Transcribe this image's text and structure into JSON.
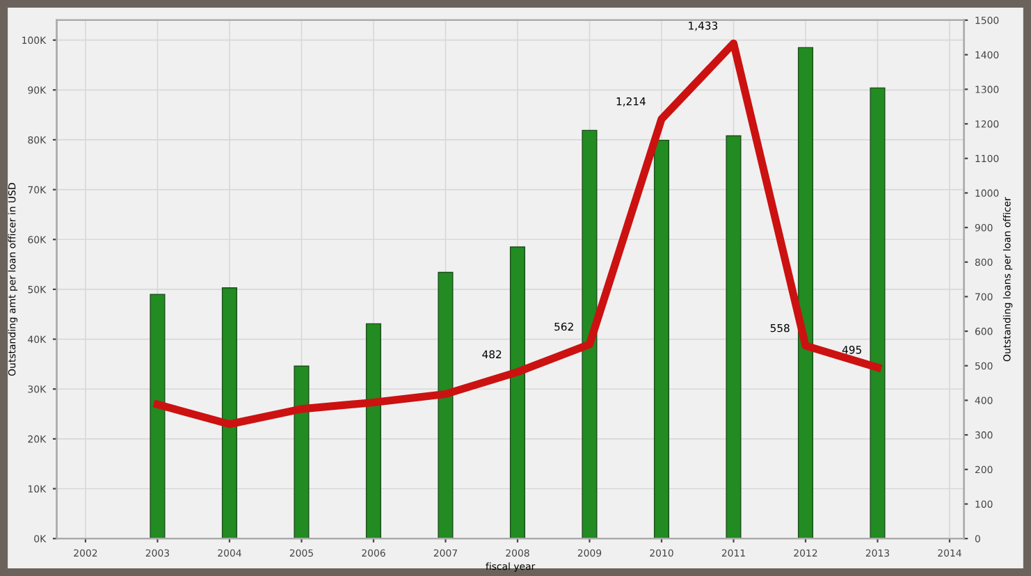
{
  "chart_data": {
    "type": "bar",
    "xlabel": "fiscal year",
    "ylabel": "Outstanding amt per loan officer in USD",
    "y2label": "Outstanding loans per loan officer",
    "x": [
      2003,
      2004,
      2005,
      2006,
      2007,
      2008,
      2009,
      2010,
      2011,
      2012,
      2013
    ],
    "series": [
      {
        "color": "#228b22",
        "values": [
          49000,
          50300,
          34600,
          43100,
          53400,
          58500,
          81900,
          79900,
          80800,
          98500,
          90400
        ]
      },
      {
        "type": "line",
        "axis": "y2",
        "color": "#cc1111",
        "values": [
          388,
          331,
          375,
          394,
          418,
          482,
          562,
          1214,
          1433,
          558,
          495
        ],
        "value_labels": [
          null,
          null,
          null,
          null,
          null,
          "482",
          "562",
          "1,214",
          "1,433",
          "558",
          "495"
        ]
      }
    ],
    "xlim": [
      2001.6,
      2014.2
    ],
    "xticks": [
      2002,
      2003,
      2004,
      2005,
      2006,
      2007,
      2008,
      2009,
      2010,
      2011,
      2012,
      2013,
      2014
    ],
    "ylim": [
      0,
      104000
    ],
    "yticks": [
      {
        "value": 0,
        "label": "0K"
      },
      {
        "value": 10000,
        "label": "10K"
      },
      {
        "value": 20000,
        "label": "20K"
      },
      {
        "value": 30000,
        "label": "30K"
      },
      {
        "value": 40000,
        "label": "40K"
      },
      {
        "value": 50000,
        "label": "50K"
      },
      {
        "value": 60000,
        "label": "60K"
      },
      {
        "value": 70000,
        "label": "70K"
      },
      {
        "value": 80000,
        "label": "80K"
      },
      {
        "value": 90000,
        "label": "90K"
      },
      {
        "value": 100000,
        "label": "100K"
      }
    ],
    "y2lim": [
      0,
      1500
    ],
    "y2ticks": [
      0,
      100,
      200,
      300,
      400,
      500,
      600,
      700,
      800,
      900,
      1000,
      1100,
      1200,
      1300,
      1400,
      1500
    ],
    "grid": true,
    "marker": "none",
    "line_style": "solid"
  }
}
